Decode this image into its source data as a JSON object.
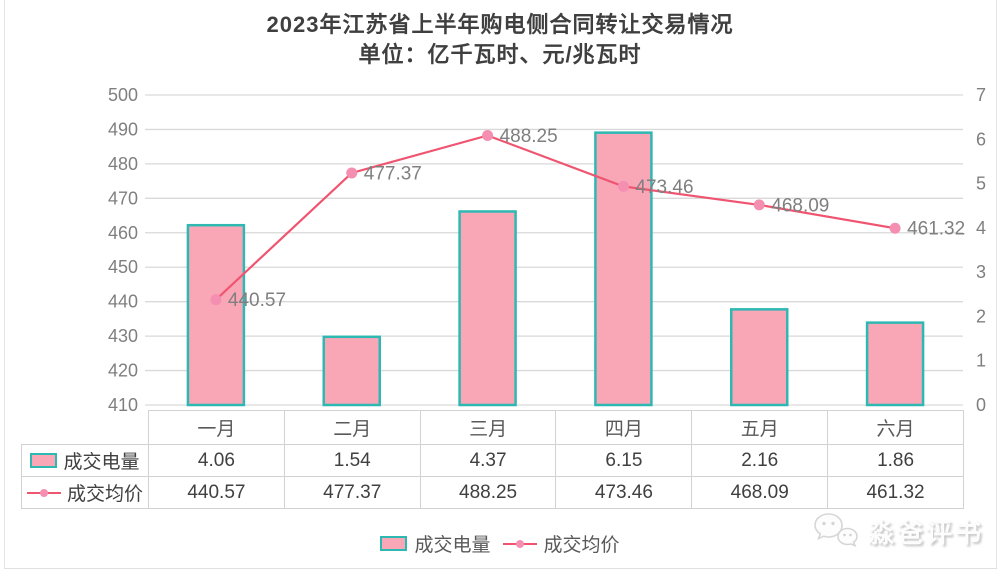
{
  "title": {
    "line1": "2023年江苏省上半年购电侧合同转让交易情况",
    "line2": "单位：亿千瓦时、元/兆瓦时"
  },
  "chart_data": {
    "type": "combo",
    "title": "2023年江苏省上半年购电侧合同转让交易情况",
    "subtitle": "单位：亿千瓦时、元/兆瓦时",
    "categories": [
      "一月",
      "二月",
      "三月",
      "四月",
      "五月",
      "六月"
    ],
    "series": [
      {
        "name": "成交电量",
        "type": "bar",
        "axis": "right",
        "values": [
          4.06,
          1.54,
          4.37,
          6.15,
          2.16,
          1.86
        ]
      },
      {
        "name": "成交均价",
        "type": "line",
        "axis": "left",
        "values": [
          440.57,
          477.37,
          488.25,
          473.46,
          468.09,
          461.32
        ],
        "point_labels": [
          "440.57",
          "477.37",
          "488.25",
          "473.46",
          "468.09",
          "461.32"
        ]
      }
    ],
    "left_axis": {
      "min": 410,
      "max": 500,
      "step": 10,
      "ticks": [
        "410",
        "420",
        "430",
        "440",
        "450",
        "460",
        "470",
        "480",
        "490",
        "500"
      ]
    },
    "right_axis": {
      "min": 0,
      "max": 7,
      "step": 1,
      "ticks": [
        "0",
        "1",
        "2",
        "3",
        "4",
        "5",
        "6",
        "7"
      ]
    },
    "grid": true,
    "legend_position": "bottom",
    "data_table_shown": true
  },
  "colors": {
    "bar_fill": "#f9a6b7",
    "bar_stroke": "#2db8b2",
    "line": "#ef5570",
    "marker": "#f48fb1",
    "grid": "#d9d9d9",
    "axis_label": "#7f7f7f",
    "point_label": "#7f7f7f",
    "table_border": "#d2d2d2"
  },
  "watermark": {
    "text": "淼爸评书"
  }
}
